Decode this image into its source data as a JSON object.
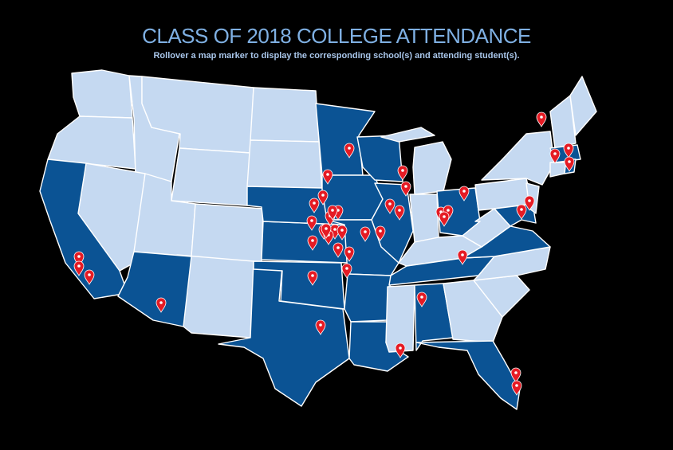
{
  "header": {
    "title": "CLASS OF 2018 COLLEGE ATTENDANCE",
    "subtitle": "Rollover a map marker to display the corresponding school(s) and attending student(s)."
  },
  "colors": {
    "background": "#000000",
    "title": "#7fb0e3",
    "subtitle": "#a9c6ea",
    "state_attended": "#0b5394",
    "state_default": "#c5d9f1",
    "marker": "#e51b24",
    "marker_dot": "#ffffff"
  },
  "map": {
    "icon": "map-marker-icon",
    "attended_states": [
      "CA",
      "AZ",
      "TX",
      "OK",
      "KS",
      "NE",
      "IA",
      "MN",
      "WI",
      "IL",
      "MO",
      "AR",
      "LA",
      "AL",
      "FL",
      "TN",
      "OH",
      "VA",
      "MD",
      "NY-MA-RI"
    ],
    "markers": [
      {
        "id": "m1",
        "region": "ca-north"
      },
      {
        "id": "m2",
        "region": "ca-mid"
      },
      {
        "id": "m3",
        "region": "ca-south"
      },
      {
        "id": "m4",
        "region": "az"
      },
      {
        "id": "m5",
        "region": "tx"
      },
      {
        "id": "m6",
        "region": "ok"
      },
      {
        "id": "m7",
        "region": "mn"
      },
      {
        "id": "m8",
        "region": "ne-1"
      },
      {
        "id": "m9",
        "region": "ne-2"
      },
      {
        "id": "m10",
        "region": "ne-3"
      },
      {
        "id": "m11",
        "region": "ne-4"
      },
      {
        "id": "m12",
        "region": "ks-1"
      },
      {
        "id": "m13",
        "region": "ks-2"
      },
      {
        "id": "m14",
        "region": "ks-3"
      },
      {
        "id": "m15",
        "region": "ks-4"
      },
      {
        "id": "m16",
        "region": "ks-5"
      },
      {
        "id": "m17",
        "region": "ks-6"
      },
      {
        "id": "m18",
        "region": "ks-7"
      },
      {
        "id": "m19",
        "region": "ks-8"
      },
      {
        "id": "m20",
        "region": "mo-1"
      },
      {
        "id": "m21",
        "region": "mo-2"
      },
      {
        "id": "m22",
        "region": "mo-3"
      },
      {
        "id": "m23",
        "region": "ar"
      },
      {
        "id": "m24",
        "region": "wi-1"
      },
      {
        "id": "m25",
        "region": "il-1"
      },
      {
        "id": "m26",
        "region": "il-2"
      },
      {
        "id": "m27",
        "region": "il-3"
      },
      {
        "id": "m28",
        "region": "il-4"
      },
      {
        "id": "m29",
        "region": "oh-1"
      },
      {
        "id": "m30",
        "region": "oh-2"
      },
      {
        "id": "m31",
        "region": "oh-3"
      },
      {
        "id": "m32",
        "region": "tn"
      },
      {
        "id": "m33",
        "region": "al"
      },
      {
        "id": "m34",
        "region": "la"
      },
      {
        "id": "m35",
        "region": "fl-1"
      },
      {
        "id": "m36",
        "region": "fl-2"
      },
      {
        "id": "m37",
        "region": "md-1"
      },
      {
        "id": "m38",
        "region": "md-2"
      },
      {
        "id": "m39",
        "region": "vt"
      },
      {
        "id": "m40",
        "region": "ma-1"
      },
      {
        "id": "m41",
        "region": "ma-2"
      },
      {
        "id": "m42",
        "region": "ri"
      },
      {
        "id": "m43",
        "region": "ne-5"
      },
      {
        "id": "m44",
        "region": "ks-9"
      }
    ]
  }
}
